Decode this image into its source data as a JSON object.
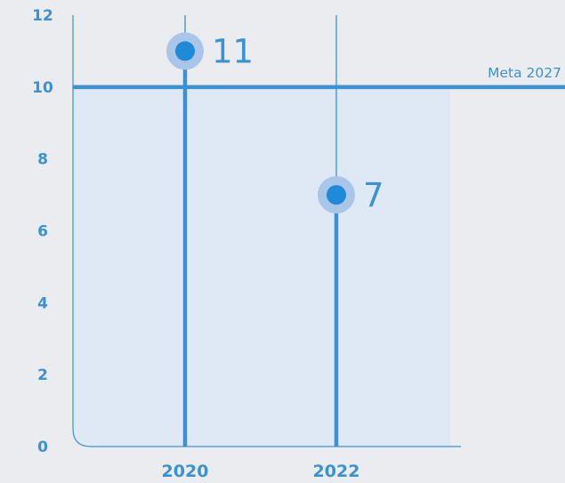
{
  "chart_data": {
    "type": "line",
    "title": "",
    "xlabel": "",
    "ylabel": "",
    "categories": [
      "2020",
      "2022"
    ],
    "series": [
      {
        "values": [
          11,
          7
        ]
      }
    ],
    "data_labels": [
      "11",
      "7"
    ],
    "ylim": [
      0,
      12
    ],
    "yticks": [
      0,
      2,
      4,
      6,
      8,
      10,
      12
    ],
    "reference_line": {
      "value": 10,
      "label": "Meta 2027"
    },
    "target_band": {
      "from": 0,
      "to": 10
    },
    "grid": false,
    "colors": {
      "background": "#ebecef",
      "primary": "#3a92d3",
      "point": "#1f8ad8",
      "halo": "#a9c5e8",
      "band": "#dfe9f6"
    }
  }
}
